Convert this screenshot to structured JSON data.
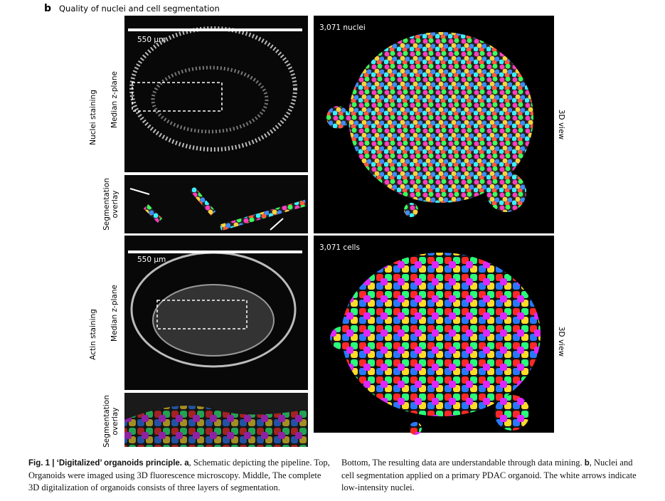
{
  "header": {
    "panel_label": "b",
    "title": "Quality of nuclei and cell segmentation"
  },
  "rows": [
    {
      "staining": "Nuclei staining",
      "plane": "Median z-plane",
      "overlay": "Segmentation overlay",
      "scale_bar": "550 µm",
      "count": "3,071 nuclei",
      "view": "3D view"
    },
    {
      "staining": "Actin staining",
      "plane": "Median z-plane",
      "overlay": "Segmentation overlay",
      "scale_bar": "550 µm",
      "count": "3,071 cells",
      "view": "3D view"
    }
  ],
  "caption": {
    "column1": [
      {
        "text": "Fig. 1 | ‘Digitalized’ organoids principle. ",
        "bold": true
      },
      {
        "text": "a",
        "bold": true
      },
      {
        "text": ", Schematic depicting the pipeline. Top, Organoids were imaged using 3D fluorescence microscopy. Middle, The complete 3D digitalization of organoids consists of three layers of segmentation.",
        "bold": false
      }
    ],
    "column2": [
      {
        "text": "Bottom, The resulting data are understandable through data mining. ",
        "bold": false
      },
      {
        "text": "b",
        "bold": true
      },
      {
        "text": ", Nuclei and cell segmentation applied on a primary PDAC organoid. The white arrows indicate low-intensity nuclei.",
        "bold": false
      }
    ]
  }
}
